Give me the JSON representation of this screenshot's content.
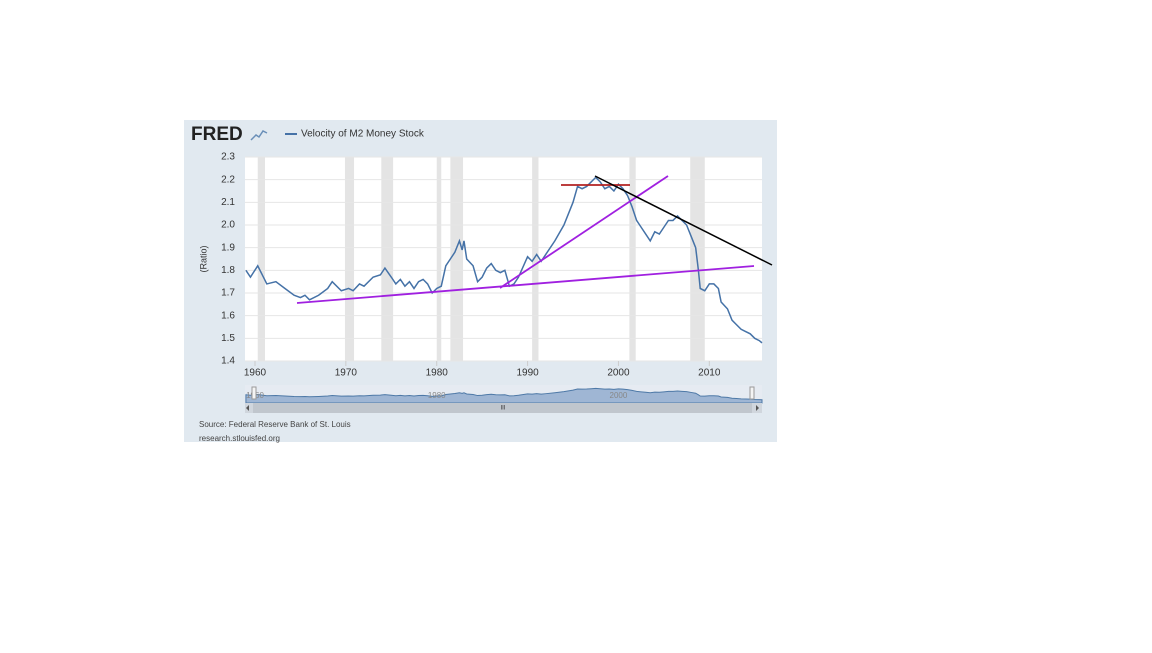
{
  "chart_data": {
    "type": "line",
    "logo": "FRED",
    "y_label": "(Ratio)",
    "source": "Source: Federal Reserve Bank of St. Louis",
    "site": "research.stlouisfed.org",
    "navigator_labels": [
      "1960",
      "1980",
      "2000"
    ],
    "x": [
      1959,
      1959.5,
      1960.3,
      1961.3,
      1962.3,
      1963.3,
      1964.3,
      1965,
      1965.5,
      1966,
      1967,
      1968,
      1968.5,
      1969.5,
      1970.3,
      1970.8,
      1971.5,
      1972,
      1973,
      1973.8,
      1974.3,
      1975,
      1975.5,
      1976,
      1976.5,
      1977,
      1977.5,
      1978,
      1978.5,
      1979,
      1979.5,
      1980,
      1980.5,
      1981,
      1981.5,
      1982,
      1982.5,
      1982.8,
      1983,
      1983.3,
      1984,
      1984.5,
      1985,
      1985.5,
      1986,
      1986.5,
      1987,
      1987.5,
      1988,
      1988.5,
      1989,
      1990,
      1990.5,
      1991,
      1991.5,
      1992,
      1993,
      1994,
      1995,
      1995.5,
      1996,
      1996.5,
      1997,
      1997.5,
      1998,
      1998.5,
      1999,
      1999.5,
      2000,
      2000.5,
      2001,
      2001.5,
      2002,
      2002.5,
      2003,
      2003.5,
      2004,
      2004.5,
      2005,
      2005.5,
      2006,
      2006.5,
      2007,
      2007.5,
      2008,
      2008.5,
      2008.8,
      2009,
      2009.5,
      2010,
      2010.5,
      2011,
      2011.3,
      2012,
      2012.5,
      2013,
      2013.5,
      2014,
      2014.5,
      2015,
      2015.5,
      2015.8
    ],
    "series": [
      {
        "name": "Velocity of M2 Money Stock",
        "color": "#4572a7",
        "values": [
          1.8,
          1.77,
          1.82,
          1.74,
          1.75,
          1.72,
          1.69,
          1.68,
          1.69,
          1.67,
          1.69,
          1.72,
          1.75,
          1.71,
          1.72,
          1.71,
          1.74,
          1.73,
          1.77,
          1.78,
          1.81,
          1.77,
          1.74,
          1.76,
          1.73,
          1.75,
          1.72,
          1.75,
          1.76,
          1.74,
          1.7,
          1.72,
          1.73,
          1.82,
          1.85,
          1.88,
          1.93,
          1.89,
          1.93,
          1.85,
          1.82,
          1.75,
          1.77,
          1.81,
          1.83,
          1.8,
          1.79,
          1.8,
          1.73,
          1.74,
          1.77,
          1.86,
          1.84,
          1.87,
          1.84,
          1.87,
          1.93,
          2.0,
          2.1,
          2.17,
          2.16,
          2.17,
          2.19,
          2.21,
          2.19,
          2.16,
          2.17,
          2.15,
          2.18,
          2.16,
          2.13,
          2.08,
          2.02,
          1.99,
          1.96,
          1.93,
          1.97,
          1.96,
          1.99,
          2.02,
          2.02,
          2.04,
          2.02,
          2.0,
          1.95,
          1.9,
          1.8,
          1.72,
          1.71,
          1.74,
          1.74,
          1.72,
          1.66,
          1.63,
          1.58,
          1.56,
          1.54,
          1.53,
          1.52,
          1.5,
          1.49,
          1.48
        ]
      }
    ],
    "shaded_periods": [
      [
        1960.3,
        1961.1
      ],
      [
        1969.9,
        1970.9
      ],
      [
        1973.9,
        1975.2
      ],
      [
        1980,
        1980.5
      ],
      [
        1981.5,
        1982.9
      ],
      [
        1990.5,
        1991.2
      ],
      [
        2001.2,
        2001.9
      ],
      [
        2007.9,
        2009.5
      ]
    ],
    "xlim": [
      1958.9,
      2015.8
    ],
    "xticks": [
      1960,
      1970,
      1980,
      1990,
      2000,
      2010
    ],
    "ylim": [
      1.4,
      2.3
    ],
    "yticks": [
      2.3,
      2.2,
      2.1,
      {
        "value": 2,
        "label": "2.0"
      },
      1.9,
      1.8,
      1.7,
      1.6,
      1.5,
      1.4
    ],
    "grid": true
  }
}
